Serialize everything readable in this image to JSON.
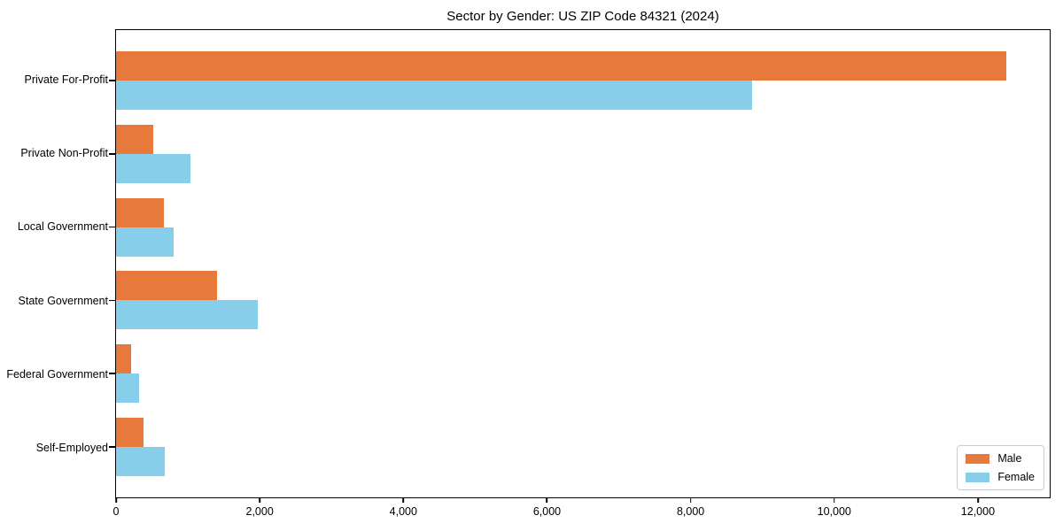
{
  "chart_data": {
    "type": "bar",
    "orientation": "horizontal",
    "title": "Sector by Gender: US ZIP Code 84321 (2024)",
    "categories": [
      "Private For-Profit",
      "Private Non-Profit",
      "Local Government",
      "State Government",
      "Federal Government",
      "Self-Employed"
    ],
    "series": [
      {
        "name": "Male",
        "color": "#e8793d",
        "values": [
          12400,
          520,
          660,
          1410,
          210,
          380
        ]
      },
      {
        "name": "Female",
        "color": "#87ceeb",
        "values": [
          8850,
          1030,
          800,
          1970,
          320,
          680
        ]
      }
    ],
    "xlabel": "",
    "ylabel": "",
    "xlim": [
      0,
      13000
    ],
    "xticks": [
      0,
      2000,
      4000,
      6000,
      8000,
      10000,
      12000
    ],
    "xtick_labels": [
      "0",
      "2,000",
      "4,000",
      "6,000",
      "8,000",
      "10,000",
      "12,000"
    ],
    "grid": false,
    "frame": "full-box",
    "legend": {
      "position": "lower right",
      "entries": [
        "Male",
        "Female"
      ]
    }
  }
}
